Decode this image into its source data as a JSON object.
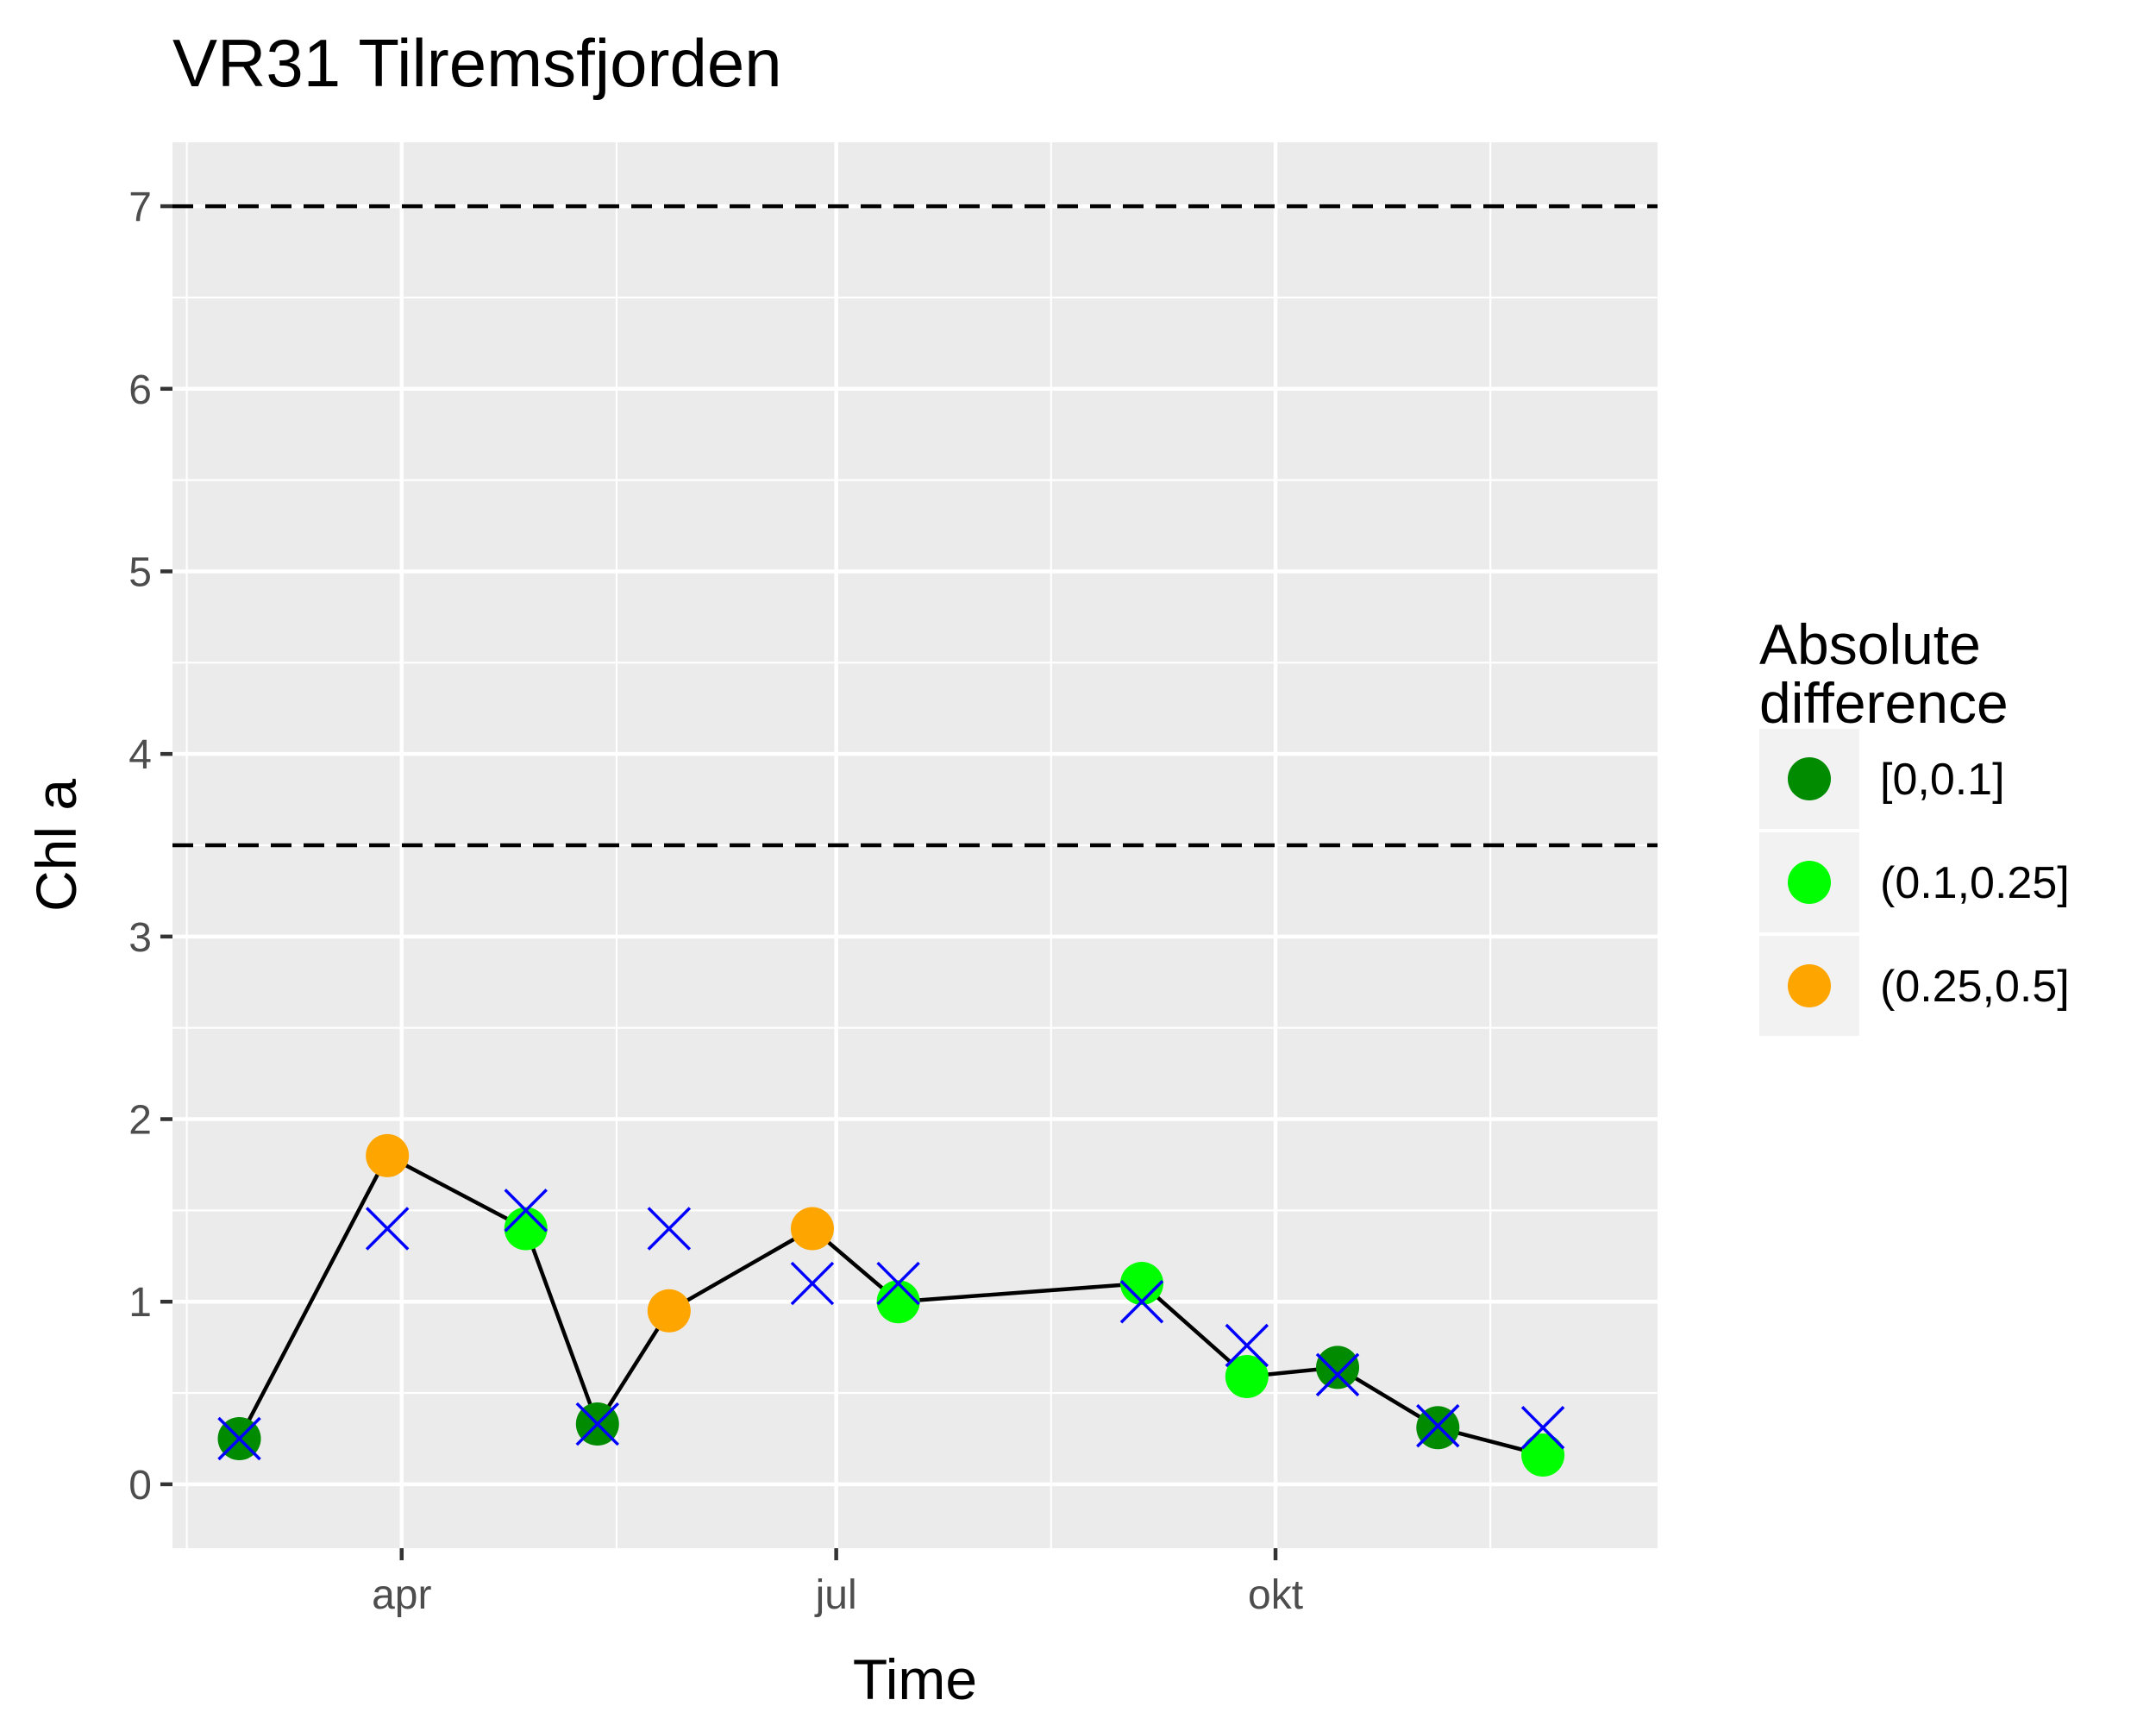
{
  "chart_data": {
    "type": "line",
    "title": "VR31 Tilremsfjorden",
    "xlabel": "Time",
    "ylabel": "Chl a",
    "x_tick_labels": [
      "apr",
      "jul",
      "okt"
    ],
    "x_ticks": [
      "2019-04-01",
      "2019-07-01",
      "2019-10-01"
    ],
    "x_minor_ticks": [
      "2019-02-15",
      "2019-05-16",
      "2019-08-15",
      "2019-11-15"
    ],
    "xlim": [
      "2019-02-12",
      "2019-12-20"
    ],
    "y_ticks": [
      0,
      1,
      2,
      3,
      4,
      5,
      6,
      7
    ],
    "y_tick_labels": [
      "0",
      "1",
      "2",
      "3",
      "4",
      "5",
      "6",
      "7"
    ],
    "ylim": [
      -0.35,
      7.35
    ],
    "grid": true,
    "reference_lines": [
      {
        "y": 3.5,
        "style": "dashed",
        "color": "#000000"
      },
      {
        "y": 7.0,
        "style": "dashed",
        "color": "#000000"
      }
    ],
    "legend": {
      "title": [
        "Absolute",
        "difference"
      ],
      "position": "right",
      "entries": [
        {
          "label": "[0,0.1]",
          "color": "#008B00"
        },
        {
          "label": "(0.1,0.25]",
          "color": "#00FF00"
        },
        {
          "label": "(0.25,0.5]",
          "color": "#FFA500"
        }
      ]
    },
    "series": [
      {
        "type": "line+points",
        "line_color": "#000000",
        "points": [
          {
            "x": "2019-02-26",
            "y": 0.25,
            "class": "[0,0.1]"
          },
          {
            "x": "2019-03-29",
            "y": 1.8,
            "class": "(0.25,0.5]"
          },
          {
            "x": "2019-04-27",
            "y": 1.4,
            "class": "(0.1,0.25]"
          },
          {
            "x": "2019-05-12",
            "y": 0.33,
            "class": "[0,0.1]"
          },
          {
            "x": "2019-05-27",
            "y": 0.95,
            "class": "(0.25,0.5]"
          },
          {
            "x": "2019-06-26",
            "y": 1.4,
            "class": "(0.25,0.5]"
          },
          {
            "x": "2019-07-14",
            "y": 1.0,
            "class": "(0.1,0.25]"
          },
          {
            "x": "2019-09-03",
            "y": 1.1,
            "class": "(0.1,0.25]"
          },
          {
            "x": "2019-09-25",
            "y": 0.59,
            "class": "(0.1,0.25]"
          },
          {
            "x": "2019-10-14",
            "y": 0.64,
            "class": "[0,0.1]"
          },
          {
            "x": "2019-11-04",
            "y": 0.31,
            "class": "[0,0.1]"
          },
          {
            "x": "2019-11-26",
            "y": 0.16,
            "class": "(0.1,0.25]"
          }
        ]
      },
      {
        "type": "x-marker",
        "color": "#0000FF",
        "points": [
          {
            "x": "2019-02-26",
            "y": 0.25
          },
          {
            "x": "2019-03-29",
            "y": 1.4
          },
          {
            "x": "2019-04-27",
            "y": 1.5
          },
          {
            "x": "2019-05-12",
            "y": 0.33
          },
          {
            "x": "2019-05-27",
            "y": 1.4
          },
          {
            "x": "2019-06-26",
            "y": 1.1
          },
          {
            "x": "2019-07-14",
            "y": 1.1
          },
          {
            "x": "2019-09-03",
            "y": 1.0
          },
          {
            "x": "2019-09-25",
            "y": 0.76
          },
          {
            "x": "2019-10-14",
            "y": 0.6
          },
          {
            "x": "2019-11-04",
            "y": 0.32
          },
          {
            "x": "2019-11-26",
            "y": 0.31
          }
        ]
      }
    ]
  }
}
